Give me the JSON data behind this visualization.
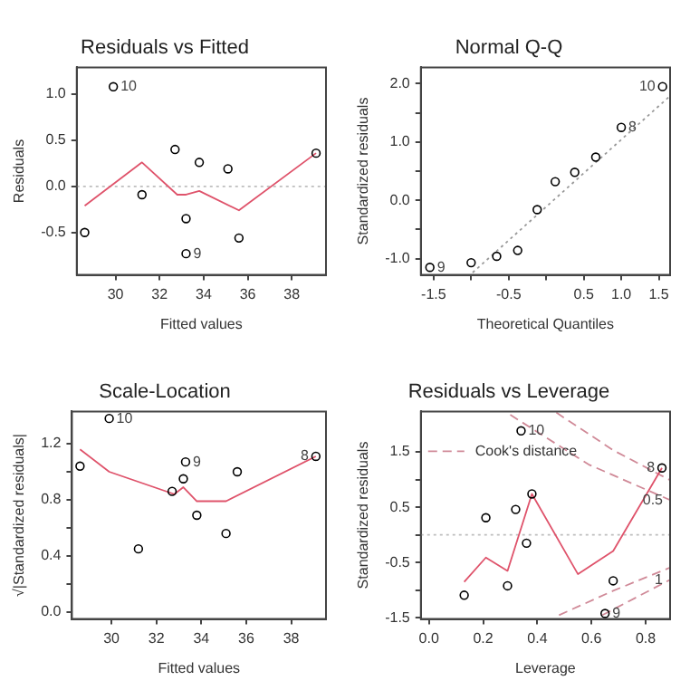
{
  "chart_data": [
    {
      "type": "scatter",
      "title": "Residuals vs Fitted",
      "xlabel": "Fitted values",
      "ylabel": "Residuals",
      "xlim": [
        28.24,
        39.55
      ],
      "ylim": [
        -0.96,
        1.29
      ],
      "xticks": [
        30,
        32,
        34,
        36,
        38
      ],
      "yticks": [
        {
          "value": -0.5,
          "label": "-0.5"
        },
        {
          "value": 0,
          "label": "0.0"
        },
        {
          "value": 0.5,
          "label": "0.5"
        },
        {
          "value": 1,
          "label": "1.0"
        }
      ],
      "series": [
        {
          "type": "scatter",
          "marker": "circle",
          "color": "#000000",
          "x": [
            28.6,
            29.9,
            31.2,
            32.7,
            33.2,
            33.2,
            33.8,
            35.1,
            35.6,
            39.1
          ],
          "values": [
            -0.5,
            1.08,
            -0.09,
            0.4,
            -0.35,
            -0.73,
            0.26,
            0.19,
            -0.56,
            0.36
          ]
        },
        {
          "type": "line",
          "marker": "none",
          "color": "#df536b",
          "line_style": "solid",
          "x": [
            28.6,
            31.2,
            32.8,
            33.2,
            33.8,
            35.6,
            39.1
          ],
          "values": [
            -0.21,
            0.26,
            -0.09,
            -0.09,
            -0.05,
            -0.26,
            0.36
          ]
        }
      ],
      "ref_lines": [
        {
          "axis": "y",
          "value": 0,
          "color": "#bebebe",
          "line_style": "dotted"
        }
      ],
      "annotations": [
        {
          "text": "10",
          "x": 29.9,
          "y": 1.08
        },
        {
          "text": "9",
          "x": 33.2,
          "y": -0.73
        }
      ]
    },
    {
      "type": "scatter",
      "title": "Normal Q-Q",
      "xlabel": "Theoretical Quantiles",
      "ylabel": "Standardized residuals",
      "xlim": [
        -1.67,
        1.65
      ],
      "ylim": [
        -1.28,
        2.28
      ],
      "xticks": [
        {
          "value": -1.5,
          "label": "-1.5"
        },
        {
          "value": -1,
          "label": null
        },
        {
          "value": -0.5,
          "label": "-0.5"
        },
        {
          "value": 0,
          "label": null
        },
        {
          "value": 0.5,
          "label": "0.5"
        },
        {
          "value": 1,
          "label": "1.0"
        },
        {
          "value": 1.5,
          "label": "1.5"
        }
      ],
      "yticks": [
        {
          "value": -1,
          "label": "-1.0"
        },
        {
          "value": -0.5,
          "label": null
        },
        {
          "value": 0,
          "label": "0.0"
        },
        {
          "value": 0.5,
          "label": null
        },
        {
          "value": 1,
          "label": "1.0"
        },
        {
          "value": 1.5,
          "label": null
        },
        {
          "value": 2,
          "label": "2.0"
        }
      ],
      "series": [
        {
          "type": "scatter",
          "marker": "circle",
          "color": "#000000",
          "x": [
            -1.55,
            -1.0,
            -0.66,
            -0.38,
            -0.12,
            0.12,
            0.38,
            0.66,
            1.0,
            1.55
          ],
          "values": [
            -1.15,
            -1.07,
            -0.96,
            -0.86,
            -0.16,
            0.32,
            0.48,
            0.74,
            1.25,
            1.95
          ]
        },
        {
          "type": "line",
          "marker": "none",
          "color": "#999999",
          "line_style": "dotted",
          "x": [
            -0.98,
            1.65
          ],
          "values": [
            -1.24,
            1.79
          ]
        }
      ],
      "annotations": [
        {
          "text": "9",
          "x": -1.55,
          "y": -1.15
        },
        {
          "text": "8",
          "x": 1.0,
          "y": 1.25
        },
        {
          "text": "10",
          "x": 1.55,
          "y": 1.95
        }
      ]
    },
    {
      "type": "scatter",
      "title": "Scale-Location",
      "xlabel": "Fitted values",
      "ylabel": "√|Standardized residuals|",
      "xlim": [
        28.24,
        39.55
      ],
      "ylim": [
        -0.05,
        1.43
      ],
      "xticks": [
        30,
        32,
        34,
        36,
        38
      ],
      "yticks": [
        {
          "value": 0,
          "label": "0.0"
        },
        {
          "value": 0.2,
          "label": null
        },
        {
          "value": 0.4,
          "label": "0.4"
        },
        {
          "value": 0.6,
          "label": null
        },
        {
          "value": 0.8,
          "label": "0.8"
        },
        {
          "value": 1,
          "label": null
        },
        {
          "value": 1.2,
          "label": "1.2"
        }
      ],
      "series": [
        {
          "type": "scatter",
          "marker": "circle",
          "color": "#000000",
          "x": [
            28.6,
            29.9,
            31.2,
            32.7,
            33.2,
            33.3,
            33.8,
            35.1,
            35.6,
            39.1
          ],
          "values": [
            1.04,
            1.38,
            0.45,
            0.86,
            0.95,
            1.07,
            0.69,
            0.56,
            1.0,
            1.11
          ]
        },
        {
          "type": "line",
          "marker": "none",
          "color": "#df536b",
          "line_style": "solid",
          "x": [
            28.6,
            29.9,
            32.8,
            33.2,
            33.8,
            35.1,
            39.1
          ],
          "values": [
            1.16,
            1.0,
            0.84,
            0.89,
            0.79,
            0.79,
            1.11
          ]
        }
      ],
      "annotations": [
        {
          "text": "10",
          "x": 29.9,
          "y": 1.38
        },
        {
          "text": "9",
          "x": 33.3,
          "y": 1.07
        },
        {
          "text": "8",
          "x": 39.1,
          "y": 1.11
        }
      ]
    },
    {
      "type": "scatter",
      "title": "Residuals vs Leverage",
      "xlabel": "Leverage",
      "ylabel": "Standardized residuals",
      "legend": "top left",
      "xlim": [
        -0.03,
        0.89
      ],
      "ylim": [
        -1.52,
        2.23
      ],
      "xticks": [
        {
          "value": 0,
          "label": "0.0"
        },
        {
          "value": 0.2,
          "label": "0.2"
        },
        {
          "value": 0.4,
          "label": "0.4"
        },
        {
          "value": 0.6,
          "label": "0.6"
        },
        {
          "value": 0.8,
          "label": "0.8"
        }
      ],
      "yticks": [
        {
          "value": -1.5,
          "label": "-1.5"
        },
        {
          "value": -1,
          "label": null
        },
        {
          "value": -0.5,
          "label": "-0.5"
        },
        {
          "value": 0,
          "label": null
        },
        {
          "value": 0.5,
          "label": "0.5"
        },
        {
          "value": 1,
          "label": null
        },
        {
          "value": 1.5,
          "label": "1.5"
        }
      ],
      "series": [
        {
          "type": "scatter",
          "marker": "circle",
          "color": "#000000",
          "x": [
            0.13,
            0.21,
            0.29,
            0.32,
            0.36,
            0.38,
            0.34,
            0.68,
            0.65,
            0.86
          ],
          "values": [
            -1.09,
            0.31,
            -0.92,
            0.46,
            -0.15,
            0.74,
            1.88,
            -0.83,
            -1.42,
            1.21
          ]
        },
        {
          "type": "line",
          "marker": "none",
          "color": "#df536b",
          "line_style": "solid",
          "x": [
            0.13,
            0.21,
            0.29,
            0.38,
            0.55,
            0.68,
            0.86
          ],
          "values": [
            -0.85,
            -0.41,
            -0.65,
            0.74,
            -0.71,
            -0.29,
            1.21
          ]
        },
        {
          "type": "line",
          "marker": "none",
          "name": "Cook's distance",
          "color": "#d08a98",
          "line_style": "dashed",
          "x": [
            0.3,
            0.59,
            0.89
          ],
          "values": [
            2.17,
            1.27,
            0.63
          ]
        },
        {
          "type": "line",
          "marker": "none",
          "color": "#d08a98",
          "line_style": "dashed",
          "x": [
            0.47,
            0.68,
            0.89
          ],
          "values": [
            2.21,
            1.53,
            0.99
          ]
        },
        {
          "type": "line",
          "marker": "none",
          "color": "#d08a98",
          "line_style": "dashed",
          "x": [
            0.48,
            0.68,
            0.89
          ],
          "values": [
            -1.45,
            -1.01,
            -0.59
          ]
        },
        {
          "type": "line",
          "marker": "none",
          "color": "#d08a98",
          "line_style": "dashed",
          "x": [
            0.64,
            0.89
          ],
          "values": [
            -1.45,
            -0.81
          ]
        }
      ],
      "ref_lines": [
        {
          "axis": "y",
          "value": 0,
          "color": "#bebebe",
          "line_style": "dotted"
        }
      ],
      "annotations": [
        {
          "text": "10",
          "x": 0.34,
          "y": 1.88
        },
        {
          "text": "8",
          "x": 0.86,
          "y": 1.21
        },
        {
          "text": "9",
          "x": 0.65,
          "y": -1.42
        },
        {
          "text": "0.5",
          "x": 0.89,
          "y": 0.63
        },
        {
          "text": "1",
          "x": 0.89,
          "y": -0.81
        }
      ]
    }
  ]
}
